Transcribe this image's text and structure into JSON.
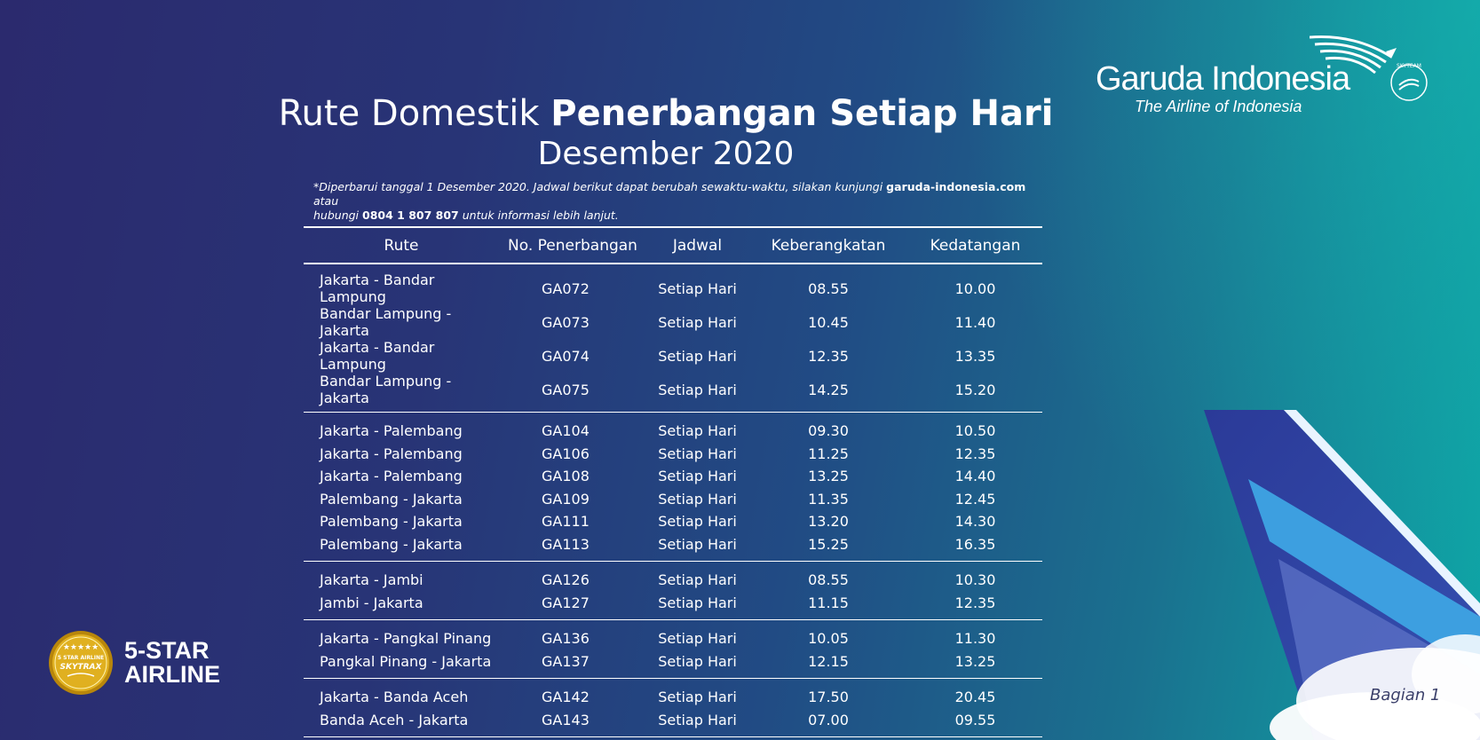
{
  "brand": {
    "name": "Garuda Indonesia",
    "tagline": "The Airline of Indonesia",
    "alliance": "SKYTEAM"
  },
  "header": {
    "title_regular": "Rute Domestik",
    "title_bold": "Penerbangan Setiap Hari",
    "subtitle": "Desember 2020"
  },
  "note": {
    "line1_pre": "*Diperbarui tanggal 1 Desember 2020. Jadwal berikut dapat berubah sewaktu-waktu, silakan kunjungi ",
    "link": "garuda-indonesia.com",
    "line1_post": " atau",
    "line2_pre": "hubungi ",
    "phone": "0804 1 807 807",
    "line2_post": " untuk informasi lebih lanjut."
  },
  "table": {
    "headers": [
      "Rute",
      "No. Penerbangan",
      "Jadwal",
      "Keberangkatan",
      "Kedatangan"
    ],
    "groups": [
      [
        [
          "Jakarta - Bandar Lampung",
          "GA072",
          "Setiap Hari",
          "08.55",
          "10.00"
        ],
        [
          "Bandar Lampung - Jakarta",
          "GA073",
          "Setiap Hari",
          "10.45",
          "11.40"
        ],
        [
          "Jakarta - Bandar Lampung",
          "GA074",
          "Setiap Hari",
          "12.35",
          "13.35"
        ],
        [
          "Bandar Lampung - Jakarta",
          "GA075",
          "Setiap Hari",
          "14.25",
          "15.20"
        ]
      ],
      [
        [
          "Jakarta - Palembang",
          "GA104",
          "Setiap Hari",
          "09.30",
          "10.50"
        ],
        [
          "Jakarta - Palembang",
          "GA106",
          "Setiap Hari",
          "11.25",
          "12.35"
        ],
        [
          "Jakarta - Palembang",
          "GA108",
          "Setiap Hari",
          "13.25",
          "14.40"
        ],
        [
          "Palembang - Jakarta",
          "GA109",
          "Setiap Hari",
          "11.35",
          "12.45"
        ],
        [
          "Palembang - Jakarta",
          "GA111",
          "Setiap Hari",
          "13.20",
          "14.30"
        ],
        [
          "Palembang - Jakarta",
          "GA113",
          "Setiap Hari",
          "15.25",
          "16.35"
        ]
      ],
      [
        [
          "Jakarta - Jambi",
          "GA126",
          "Setiap Hari",
          "08.55",
          "10.30"
        ],
        [
          "Jambi - Jakarta",
          "GA127",
          "Setiap Hari",
          "11.15",
          "12.35"
        ]
      ],
      [
        [
          "Jakarta - Pangkal Pinang",
          "GA136",
          "Setiap Hari",
          "10.05",
          "11.30"
        ],
        [
          "Pangkal Pinang - Jakarta",
          "GA137",
          "Setiap Hari",
          "12.15",
          "13.25"
        ]
      ],
      [
        [
          "Jakarta - Banda Aceh",
          "GA142",
          "Setiap Hari",
          "17.50",
          "20.45"
        ],
        [
          "Banda Aceh - Jakarta",
          "GA143",
          "Setiap Hari",
          "07.00",
          "09.55"
        ]
      ]
    ]
  },
  "award": {
    "badge_top": "5 STAR AIRLINE",
    "badge_brand": "SKYTRAX",
    "line1": "5-STAR",
    "line2": "AIRLINE"
  },
  "footer": {
    "page_label": "Bagian 1"
  },
  "colors": {
    "bg_left": "#2b2a6e",
    "bg_right": "#0ea6a6",
    "gold": "#d4a515",
    "tail_blue": "#2e3f9e",
    "tail_light": "#3fa0e0"
  }
}
